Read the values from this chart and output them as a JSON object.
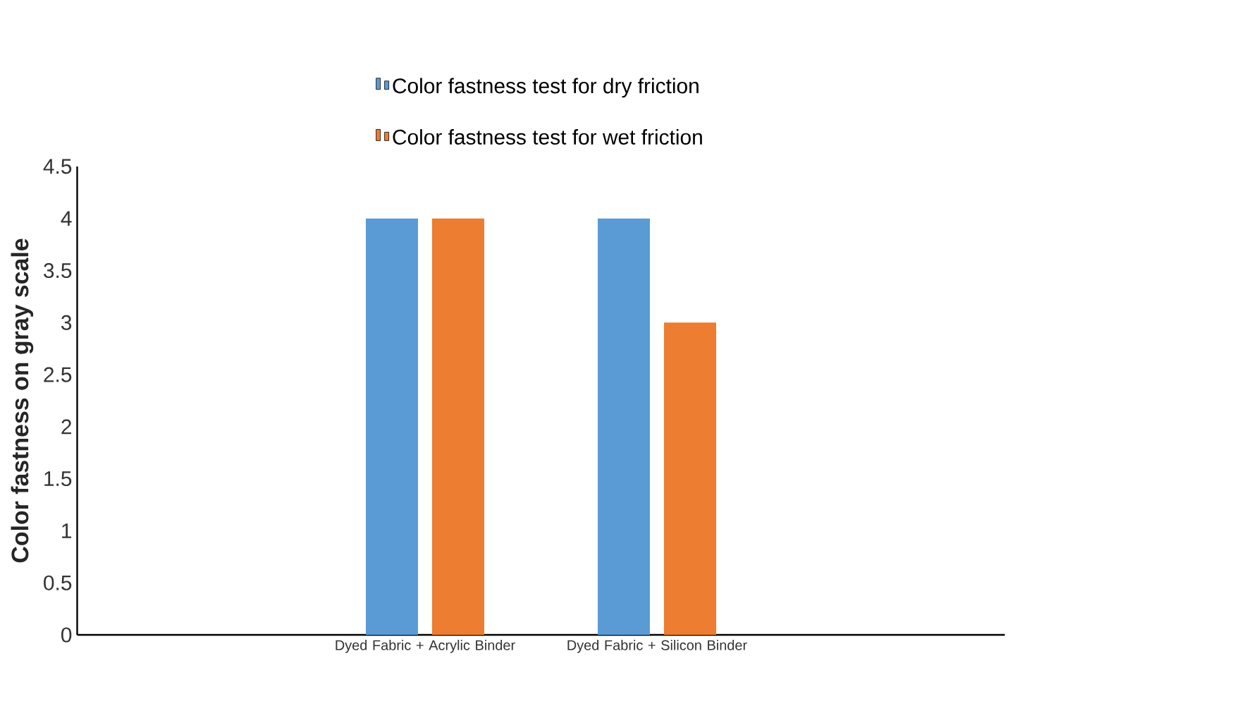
{
  "chart_data": {
    "type": "bar",
    "ylabel": "Color fastness on gray scale",
    "categories": [
      null,
      "Dyed Fabric + Acrylic Binder",
      "Dyed Fabric + Silicon Binder",
      null
    ],
    "series": [
      {
        "name": "Color fastness test for dry friction",
        "color": "#5b9bd5",
        "values": [
          null,
          4,
          4,
          null
        ]
      },
      {
        "name": "Color fastness test for wet friction",
        "color": "#ed7d31",
        "values": [
          null,
          4,
          3,
          null
        ]
      }
    ],
    "ylim": [
      0,
      4.5
    ],
    "yticks": [
      0,
      0.5,
      1,
      1.5,
      2,
      2.5,
      3,
      3.5,
      4,
      4.5
    ],
    "grid": false,
    "legend": "top"
  }
}
